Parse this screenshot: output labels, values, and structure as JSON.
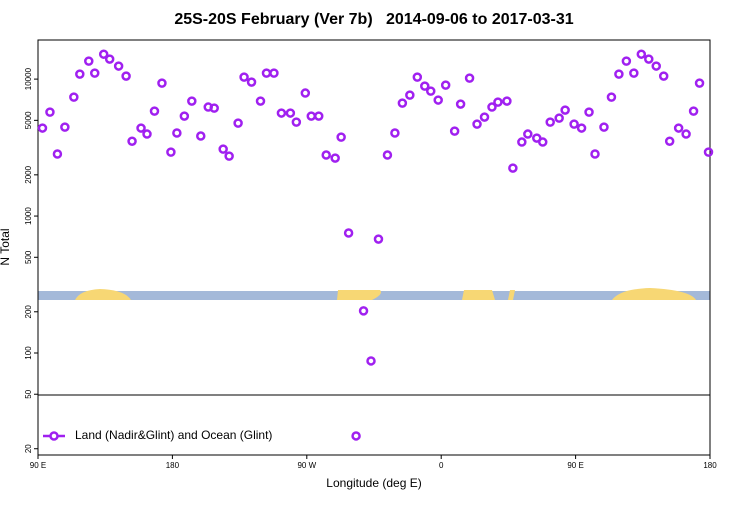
{
  "chart_data": {
    "type": "scatter",
    "title": "25S-20S February (Ver 7b)   2014-09-06 to 2017-03-31",
    "xlabel": "Longitude (deg E)",
    "ylabel": "N Total",
    "log_y": true,
    "legend": "lower left",
    "xlim": [
      90,
      540
    ],
    "xticks": [
      {
        "value": 90,
        "label": "90 E"
      },
      180,
      {
        "value": 270,
        "label": "90 W"
      },
      {
        "value": 360,
        "label": "0"
      },
      {
        "value": 450,
        "label": "90 E"
      },
      {
        "value": 540,
        "label": "180"
      }
    ],
    "ylim": [
      18,
      19300
    ],
    "yticks": [
      20,
      50,
      100,
      200,
      500,
      1000,
      2000,
      5000,
      10000
    ],
    "series": [
      {
        "name": "Land (Nadir&Glint) and Ocean (Glint)",
        "color": "#a020f0",
        "x": [
          93,
          98,
          103,
          108,
          114,
          118,
          124,
          128,
          134,
          138,
          144,
          149,
          153,
          159,
          163,
          168,
          173,
          179,
          183,
          188,
          193,
          199,
          204,
          208,
          214,
          218,
          224,
          228,
          233,
          239,
          243,
          248,
          253,
          259,
          263,
          269,
          273,
          278,
          283,
          289,
          293,
          298,
          303,
          308,
          313,
          318,
          324,
          329,
          334,
          339,
          344,
          349,
          353,
          358,
          363,
          369,
          373,
          379,
          384,
          389,
          394,
          398,
          404,
          408,
          414,
          418,
          424,
          428,
          433,
          439,
          443,
          449,
          454,
          459,
          463,
          469,
          474,
          479,
          484,
          489,
          494,
          499,
          504,
          509,
          513,
          519,
          524,
          529,
          533,
          539
        ],
        "values": [
          4390,
          5740,
          2840,
          4460,
          7390,
          10870,
          13530,
          11060,
          15200,
          14000,
          12450,
          10520,
          3520,
          4390,
          3970,
          5840,
          9350,
          2930,
          4040,
          5370,
          6910,
          3840,
          6250,
          6140,
          3080,
          2740,
          4770,
          10340,
          9510,
          6910,
          11060,
          11060,
          5650,
          5650,
          4850,
          7910,
          5370,
          5370,
          2790,
          2650,
          3770,
          752,
          24.8,
          203,
          87.5,
          679,
          2790,
          4040,
          6680,
          7640,
          10340,
          8890,
          8170,
          7030,
          9040,
          4170,
          6570,
          10170,
          4690,
          5280,
          6250,
          6790,
          6910,
          2240,
          3470,
          3970,
          3710,
          3470,
          4850,
          5190,
          5940,
          4690,
          4390,
          5740,
          2840,
          4460,
          7390,
          10870,
          13530,
          11060,
          15200,
          14000,
          12450,
          10520,
          3520,
          4390,
          3970,
          5840,
          9350,
          2930
        ]
      }
    ]
  }
}
